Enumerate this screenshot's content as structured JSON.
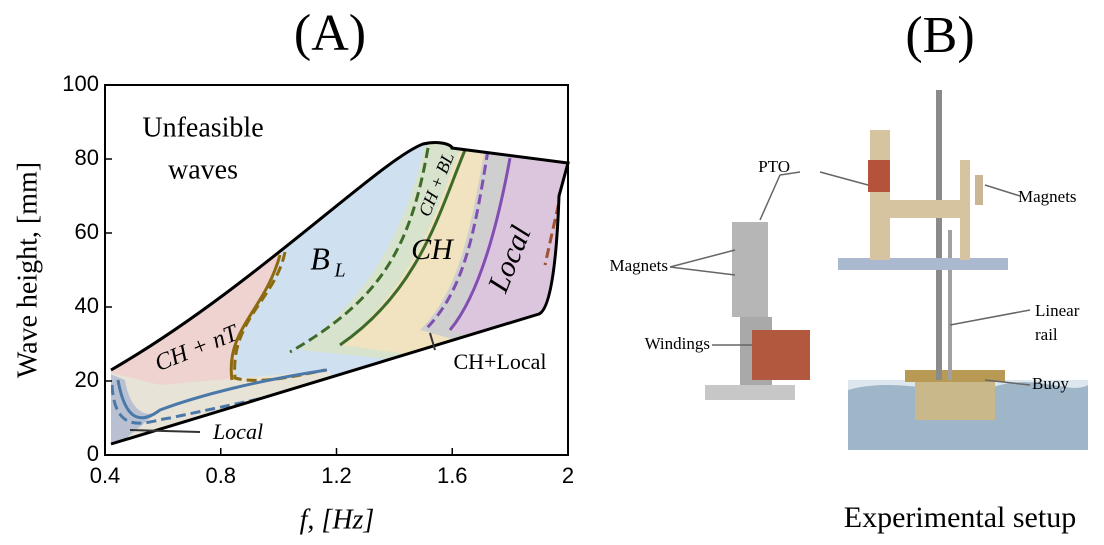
{
  "chart_data": {
    "type": "region-map",
    "title": "(A)",
    "xlabel": "f, [Hz]",
    "ylabel": "Wave height, [mm]",
    "xlim": [
      0.4,
      2
    ],
    "ylim": [
      0,
      100
    ],
    "xticks": [
      0.4,
      0.8,
      1.2,
      1.6,
      2
    ],
    "yticks": [
      0,
      20,
      40,
      60,
      80,
      100
    ],
    "annotations": [
      "Unfeasible",
      "waves",
      "CH + nT",
      "B",
      "L",
      "CH",
      "Local",
      "CH + BL",
      "CH+Local",
      "Local"
    ]
  },
  "figure_b": {
    "title": "(B)",
    "caption": "Experimental setup",
    "labels": [
      "PTO",
      "Magnets",
      "Magnets",
      "Windings",
      "Linear",
      "rail",
      "Buoy"
    ]
  }
}
